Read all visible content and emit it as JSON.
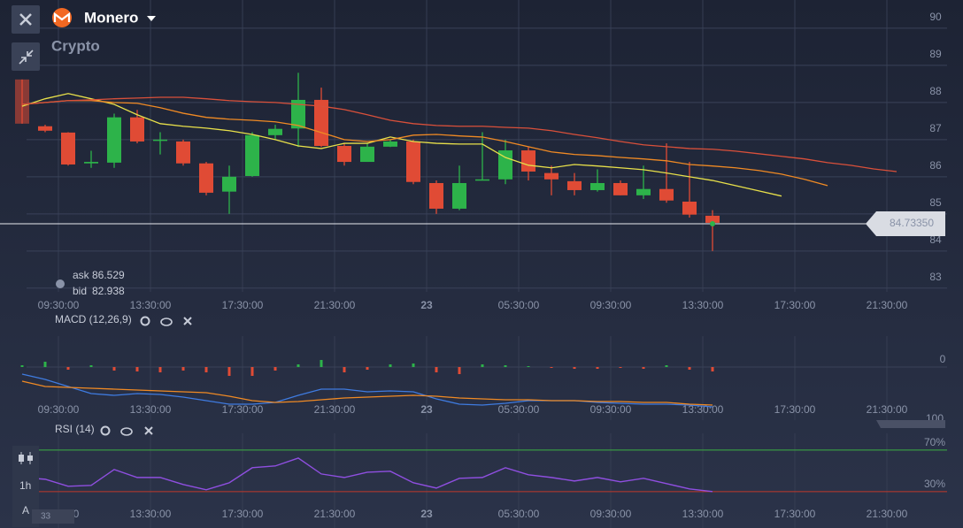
{
  "header": {
    "asset": "Monero",
    "category": "Crypto"
  },
  "quote": {
    "ask_label": "ask",
    "ask": 86.529,
    "bid_label": "bid",
    "bid": 82.938,
    "current": {
      "value": 84.7335,
      "label": "84.73350"
    }
  },
  "toolbar": {
    "timeframe": "1h",
    "scale": "A",
    "counter": "33"
  },
  "time_axis": [
    "09:30:00",
    "13:30:00",
    "17:30:00",
    "21:30:00",
    "23",
    "05:30:00",
    "09:30:00",
    "13:30:00",
    "17:30:00",
    "21:30:00"
  ],
  "chart_data": [
    {
      "type": "candlestick",
      "ylim": [
        82.9,
        90.76
      ],
      "yticks": [
        83,
        84,
        85,
        86,
        87,
        88,
        89,
        90
      ],
      "grid": true,
      "up_color": "#2db34a",
      "down_color": "#e04b35",
      "open": [
        88.62,
        87.36,
        87.19,
        86.36,
        86.38,
        87.6,
        87.0,
        86.95,
        86.36,
        85.6,
        86.02,
        87.12,
        87.3,
        88.07,
        86.83,
        86.4,
        86.81,
        86.95,
        85.83,
        85.14,
        85.9,
        85.93,
        86.71,
        86.1,
        85.88,
        85.64,
        85.83,
        85.5,
        85.67,
        85.33,
        84.95
      ],
      "high": [
        88.62,
        87.4,
        87.2,
        86.7,
        87.7,
        87.8,
        87.2,
        87.0,
        86.4,
        86.3,
        87.2,
        87.4,
        88.8,
        88.4,
        86.9,
        86.9,
        87.0,
        87.0,
        85.9,
        86.3,
        87.2,
        87.0,
        86.8,
        86.3,
        86.1,
        86.2,
        85.9,
        86.3,
        86.9,
        86.4,
        85.1
      ],
      "low": [
        87.43,
        87.2,
        86.3,
        86.24,
        86.24,
        86.9,
        86.6,
        86.3,
        85.5,
        85.0,
        86.0,
        87.0,
        86.8,
        86.8,
        86.3,
        86.4,
        86.8,
        85.8,
        85.0,
        85.1,
        85.9,
        85.8,
        85.9,
        85.5,
        85.5,
        85.6,
        85.5,
        85.4,
        85.3,
        84.9,
        84.0
      ],
      "close": [
        87.43,
        87.24,
        86.33,
        86.4,
        87.6,
        86.95,
        87.0,
        86.36,
        85.57,
        86.0,
        87.12,
        87.29,
        88.07,
        86.83,
        86.4,
        86.81,
        86.95,
        85.86,
        85.14,
        85.83,
        85.93,
        86.71,
        86.14,
        85.93,
        85.64,
        85.83,
        85.5,
        85.67,
        85.36,
        84.98,
        84.76
      ],
      "series": [
        {
          "color": "#e8e04a",
          "values": [
            87.9,
            88.1,
            88.24,
            88.1,
            87.95,
            87.67,
            87.43,
            87.36,
            87.31,
            87.24,
            87.14,
            87.0,
            86.83,
            86.76,
            86.9,
            86.9,
            87.07,
            86.95,
            86.9,
            86.88,
            86.88,
            86.52,
            86.31,
            86.24,
            86.33,
            86.29,
            86.24,
            86.19,
            86.1,
            86.0,
            85.9,
            85.76,
            85.62,
            85.48
          ]
        },
        {
          "color": "#f08a24",
          "values": [
            87.95,
            88.0,
            88.05,
            88.05,
            88.0,
            87.98,
            87.86,
            87.71,
            87.6,
            87.55,
            87.52,
            87.48,
            87.38,
            87.19,
            87.0,
            86.95,
            87.0,
            87.12,
            87.14,
            87.1,
            87.07,
            86.95,
            86.81,
            86.67,
            86.6,
            86.57,
            86.52,
            86.48,
            86.43,
            86.33,
            86.29,
            86.24,
            86.17,
            86.07,
            85.93,
            85.76
          ]
        },
        {
          "color": "#d9503a",
          "values": [
            87.95,
            88.0,
            88.05,
            88.07,
            88.1,
            88.12,
            88.14,
            88.14,
            88.1,
            88.05,
            88.02,
            88.0,
            87.95,
            87.9,
            87.81,
            87.67,
            87.52,
            87.43,
            87.38,
            87.36,
            87.36,
            87.33,
            87.31,
            87.24,
            87.14,
            87.05,
            86.95,
            86.86,
            86.81,
            86.76,
            86.74,
            86.69,
            86.62,
            86.55,
            86.48,
            86.38,
            86.31,
            86.21,
            86.14
          ]
        }
      ]
    },
    {
      "type": "macd",
      "title": "MACD (12,26,9)",
      "ylim": [
        -0.6,
        0.6
      ],
      "yticks": [
        0
      ],
      "histogram": [
        0.02,
        0.06,
        -0.03,
        0.02,
        -0.04,
        -0.05,
        -0.06,
        -0.04,
        -0.06,
        -0.1,
        -0.1,
        -0.04,
        0.03,
        0.08,
        -0.06,
        -0.03,
        0.03,
        0.04,
        -0.06,
        -0.08,
        0.03,
        0.02,
        0.01,
        -0.01,
        -0.02,
        -0.02,
        -0.01,
        -0.02,
        0.02,
        -0.03,
        -0.05
      ],
      "up_color": "#2db34a",
      "down_color": "#e04b35",
      "series": [
        {
          "color": "#3f7be0",
          "values": [
            -0.08,
            -0.14,
            -0.22,
            -0.3,
            -0.32,
            -0.3,
            -0.31,
            -0.34,
            -0.38,
            -0.42,
            -0.42,
            -0.4,
            -0.32,
            -0.25,
            -0.25,
            -0.28,
            -0.27,
            -0.28,
            -0.36,
            -0.42,
            -0.43,
            -0.41,
            -0.38,
            -0.38,
            -0.38,
            -0.4,
            -0.41,
            -0.42,
            -0.42,
            -0.43,
            -0.45
          ]
        },
        {
          "color": "#f08a24",
          "values": [
            -0.16,
            -0.22,
            -0.23,
            -0.24,
            -0.25,
            -0.26,
            -0.27,
            -0.28,
            -0.29,
            -0.33,
            -0.38,
            -0.4,
            -0.39,
            -0.37,
            -0.35,
            -0.34,
            -0.33,
            -0.32,
            -0.33,
            -0.35,
            -0.36,
            -0.37,
            -0.37,
            -0.38,
            -0.38,
            -0.39,
            -0.39,
            -0.4,
            -0.4,
            -0.42,
            -0.43
          ]
        }
      ]
    },
    {
      "type": "line",
      "title": "RSI (14)",
      "ylim": [
        0,
        100
      ],
      "yticks": [
        100,
        {
          "value": 70,
          "label": "70%"
        },
        {
          "value": 30,
          "label": "30%"
        }
      ],
      "level_colors": [
        "#3cb043",
        "#c0392b"
      ],
      "series": [
        {
          "color": "#8f4fe0",
          "values": [
            43.6,
            41.9,
            35.1,
            36,
            51.3,
            43.6,
            43.6,
            36.8,
            31.7,
            38.5,
            53,
            54.7,
            62.3,
            47,
            43.6,
            48.7,
            49.6,
            38.5,
            33.4,
            42.8,
            43.6,
            53,
            46.2,
            43.6,
            40.2,
            43.6,
            39.4,
            42.8,
            37.7,
            32.6,
            30
          ]
        }
      ]
    }
  ]
}
